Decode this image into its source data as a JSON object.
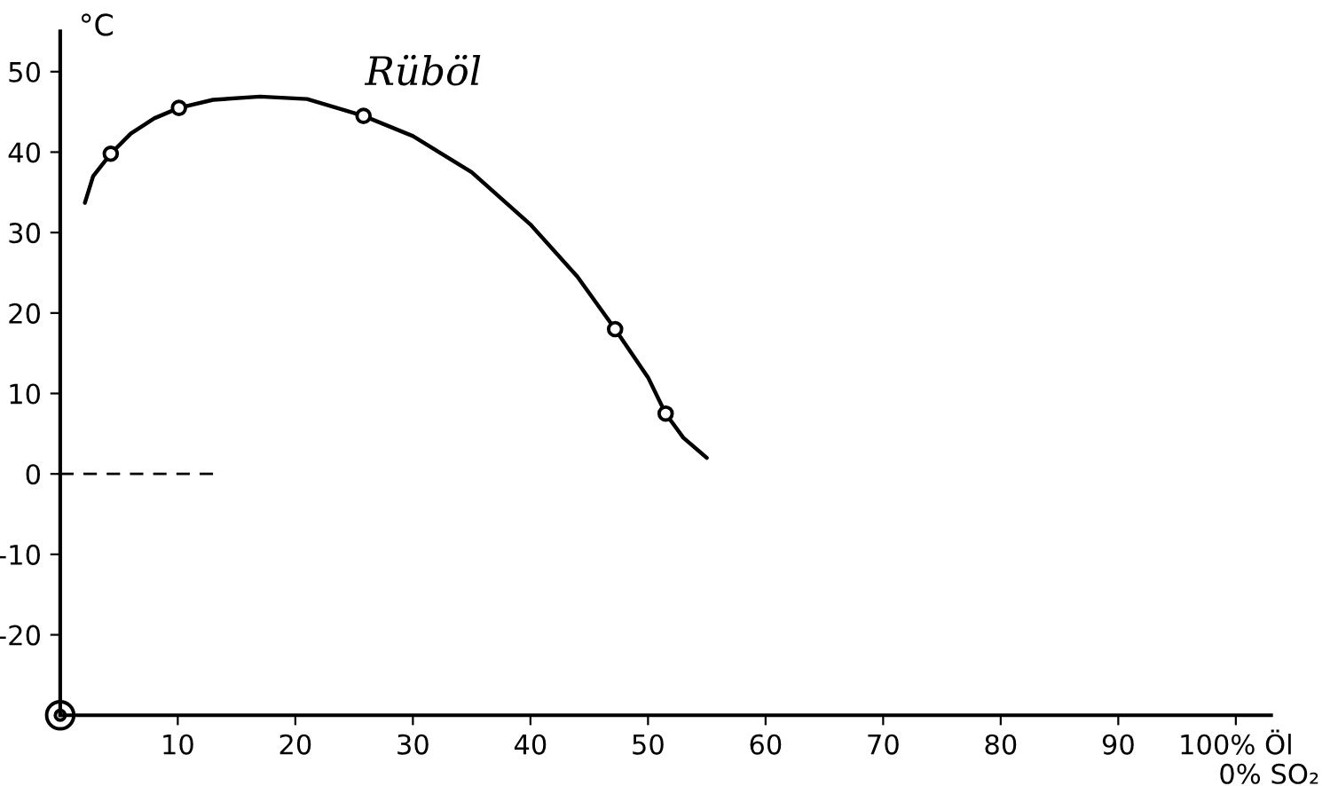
{
  "chart_data": {
    "type": "line",
    "title": "Rüböl",
    "ylabel": "°C",
    "xlabel": "0% SO₂",
    "xlim": [
      0,
      103
    ],
    "ylim": [
      -30,
      55
    ],
    "xticks": [
      10,
      20,
      30,
      40,
      50,
      60,
      70,
      80,
      90,
      {
        "value": 100,
        "label": "100% Öl"
      }
    ],
    "yticks": [
      -20,
      -10,
      0,
      10,
      20,
      30,
      40,
      50
    ],
    "grid": false,
    "legend": false,
    "series": [
      {
        "color": "#000000",
        "marker": "none",
        "line_style": "solid",
        "x": [
          2.1,
          2.8,
          4.3,
          6,
          8,
          10.1,
          13,
          17,
          21,
          25.8,
          30,
          35,
          40,
          44,
          47.2,
          50,
          51.5,
          53,
          55
        ],
        "values": [
          33.7,
          37,
          39.8,
          42.3,
          44.2,
          45.5,
          46.5,
          46.9,
          46.6,
          44.5,
          42,
          37.5,
          31,
          24.5,
          18,
          12,
          7.5,
          4.5,
          2
        ]
      },
      {
        "type": "scatter",
        "color": "#000000",
        "marker": "circle",
        "x": [
          4.3,
          10.1,
          25.8,
          47.2,
          51.5
        ],
        "values": [
          39.8,
          45.5,
          44.5,
          18,
          7.5
        ]
      },
      {
        "color": "#000000",
        "marker": "none",
        "line_style": "dashed",
        "x": [
          0,
          13
        ],
        "values": [
          0,
          0
        ]
      }
    ]
  }
}
